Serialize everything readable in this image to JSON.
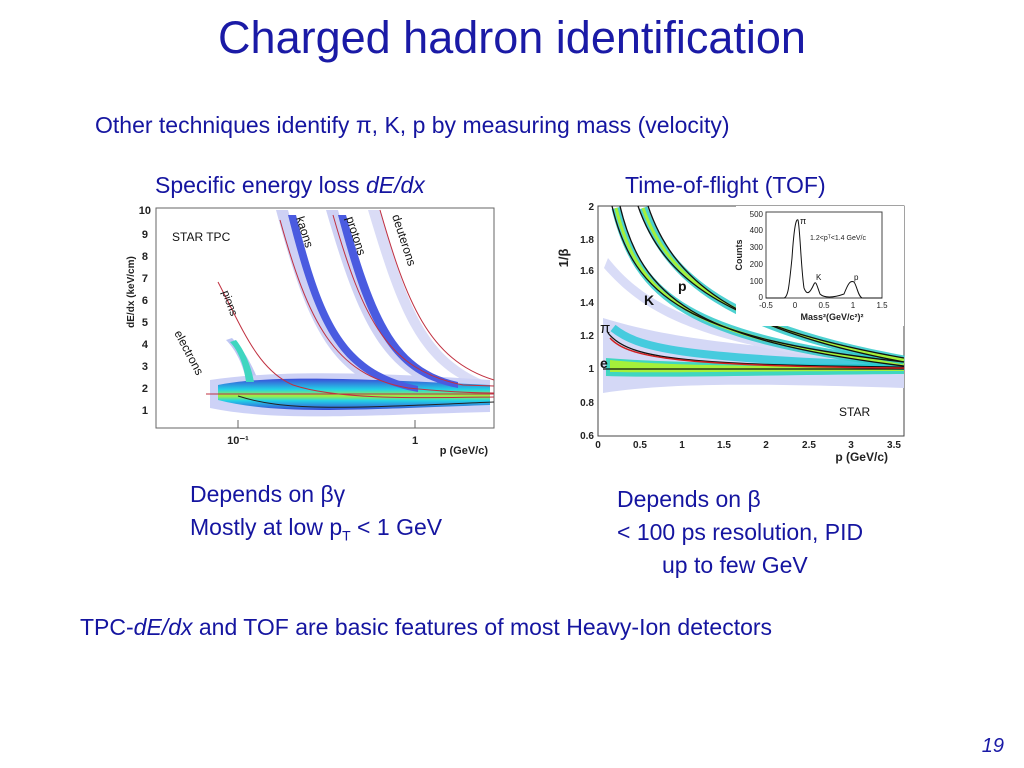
{
  "title": "Charged hadron identification",
  "subtitle": {
    "text": "Other techniques identify π, K, p by measuring mass (velocity)"
  },
  "left": {
    "heading_plain": "Specific energy loss ",
    "heading_italic": "dE/dx",
    "plot": {
      "ylabel": "dE/dx  (keV/cm)",
      "xlabel": "p  (GeV/c)",
      "yticks": [
        "1",
        "2",
        "3",
        "4",
        "5",
        "6",
        "7",
        "8",
        "9",
        "10"
      ],
      "xticks": [
        "10⁻¹",
        "1"
      ],
      "label_tpc": "STAR TPC",
      "bands": [
        "electrons",
        "pions",
        "kaons",
        "protons",
        "deuterons"
      ]
    },
    "notes": {
      "line1_prefix": "Depends on ",
      "line1_symbol": "βγ",
      "line2_prefix": "Mostly at low p",
      "line2_sub": "T",
      "line2_suffix": " < 1 GeV"
    }
  },
  "right": {
    "heading": "Time-of-flight (TOF)",
    "plot": {
      "ylabel": "1/β",
      "xlabel": "p (GeV/c)",
      "yticks": [
        "0.6",
        "0.8",
        "1",
        "1.2",
        "1.4",
        "1.6",
        "1.8",
        "2"
      ],
      "xticks": [
        "0",
        "0.5",
        "1",
        "1.5",
        "2",
        "2.5",
        "3",
        "3.5"
      ],
      "label_star": "STAR",
      "bands": [
        "e",
        "π",
        "K",
        "p"
      ],
      "inset": {
        "ylabel": "Counts",
        "xlabel": "Mass²(GeV/c²)²",
        "note": "1.2<pᵀ<1.4 GeV/c",
        "yticks": [
          "0",
          "100",
          "200",
          "300",
          "400",
          "500"
        ],
        "xticks": [
          "-0.5",
          "0",
          "0.5",
          "1",
          "1.5"
        ],
        "peaks": [
          "π",
          "K",
          "p"
        ]
      }
    },
    "notes": {
      "line1_prefix": "Depends on ",
      "line1_symbol": "β",
      "line2": "< 100 ps resolution, PID",
      "line3": "up to few GeV"
    }
  },
  "bottom": {
    "prefix": "TPC-",
    "italic": "dE/dx",
    "suffix": " and TOF are basic features of most Heavy-Ion detectors"
  },
  "page_number": "19"
}
